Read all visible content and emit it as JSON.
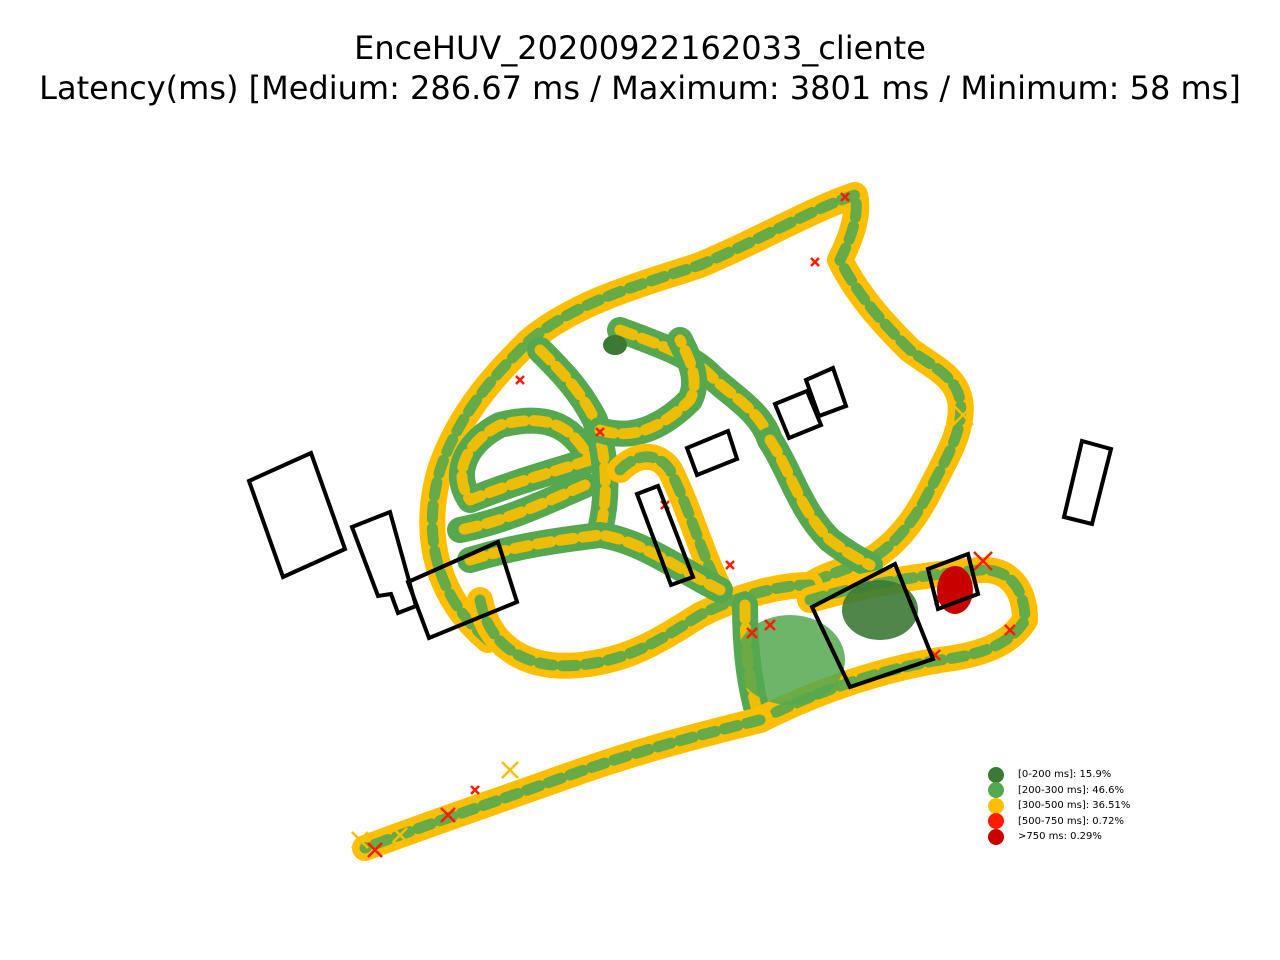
{
  "title": "EnceHUV_20200922162033_cliente",
  "subtitle": "Latency(ms) [Medium: 286.67 ms / Maximum: 3801 ms / Minimum: 58 ms]",
  "colors": {
    "range_0_200": "#3b7a35",
    "range_200_300": "#55a84f",
    "range_300_500": "#ffbf00",
    "range_500_750": "#ff1a00",
    "range_750_plus": "#c80000",
    "building_outline": "#000000"
  },
  "legend": [
    {
      "label": "[0-200 ms]: 15.9%",
      "color": "#3b7a35",
      "share": 15.9
    },
    {
      "label": "[200-300 ms]: 46.6%",
      "color": "#55a84f",
      "share": 46.6
    },
    {
      "label": "[300-500 ms]: 36.51%",
      "color": "#ffbf00",
      "share": 36.51
    },
    {
      "label": "[500-750 ms]: 0.72%",
      "color": "#ff1a00",
      "share": 0.72
    },
    {
      "label": ">750 ms: 0.29%",
      "color": "#c80000",
      "share": 0.29
    }
  ],
  "marker_symbol": "x-marker"
}
